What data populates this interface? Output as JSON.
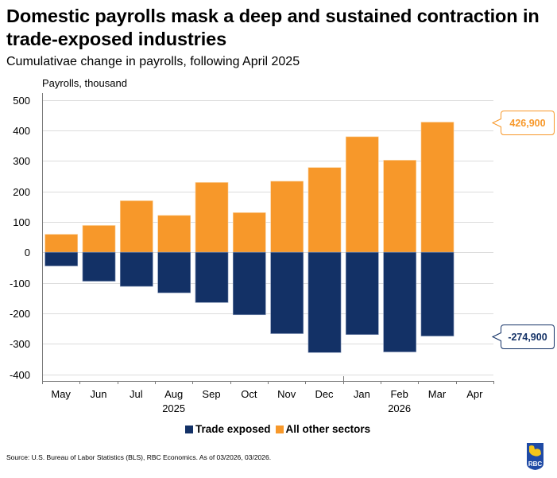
{
  "header": {
    "title": "Domestic payrolls mask a deep and sustained contraction in trade-exposed industries",
    "subtitle": "Cumulativae change in payrolls, following April 2025",
    "y_axis_label": "Payrolls, thousand"
  },
  "chart_data": {
    "type": "bar",
    "stacked": true,
    "title": "Domestic payrolls mask a deep and sustained contraction in trade-exposed industries",
    "subtitle": "Cumulativae change in payrolls, following April 2025",
    "xlabel": "",
    "ylabel": "Payrolls, thousand",
    "ylim": [
      -400,
      500
    ],
    "y_ticks": [
      "500",
      "400",
      "300",
      "200",
      "100",
      "0",
      "-100",
      "-200",
      "-300",
      "-400"
    ],
    "y_tick_values": [
      500,
      400,
      300,
      200,
      100,
      0,
      -100,
      -200,
      -300,
      -400
    ],
    "grid": true,
    "categories": [
      "May",
      "Jun",
      "Jul",
      "Aug",
      "Sep",
      "Oct",
      "Nov",
      "Dec",
      "Jan",
      "Feb",
      "Mar",
      "Apr"
    ],
    "year_labels": [
      {
        "label": "2025",
        "under": "Aug"
      },
      {
        "label": "2026",
        "under": "Feb"
      }
    ],
    "year_boundary_after": "Dec",
    "series": [
      {
        "name": "Trade exposed",
        "color": "#133166",
        "values": [
          -45,
          -95,
          -112,
          -133,
          -165,
          -205,
          -267,
          -329,
          -270,
          -327,
          -274.9,
          null
        ]
      },
      {
        "name": "All other sectors",
        "color": "#F7982A",
        "values": [
          59,
          88,
          169,
          121,
          229,
          130,
          233,
          278,
          379,
          302,
          426.9,
          null
        ]
      }
    ],
    "annotations": [
      {
        "text": "426,900",
        "series": "All other sectors",
        "value": 426.9,
        "color": "#F7982A"
      },
      {
        "text": "-274,900",
        "series": "Trade exposed",
        "value": -274.9,
        "color": "#133166"
      }
    ],
    "legend": {
      "position": "bottom-center",
      "entries": [
        "Trade exposed",
        "All other sectors"
      ]
    }
  },
  "footer": {
    "source": "Source: U.S. Bureau of Labor Statistics (BLS), RBC Economics. As of 03/2026, 03/2026.",
    "logo_text": "RBC"
  }
}
